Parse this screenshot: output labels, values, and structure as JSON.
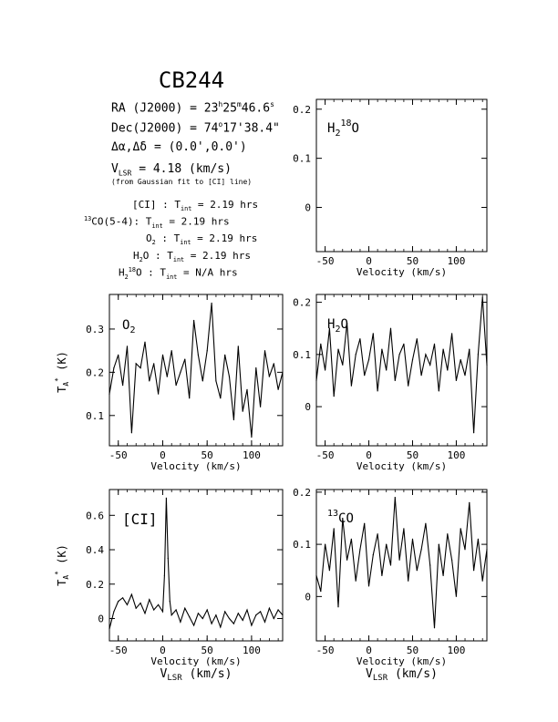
{
  "title": "CB244",
  "source_info": {
    "ra_label": "RA (J2000) =",
    "ra_value": {
      "h": "23",
      "m": "25",
      "s": "46.6"
    },
    "dec_label": "Dec(J2000) =",
    "dec_value": {
      "d": "74",
      "m": "17",
      "s": "38.4"
    },
    "offset_label": "Δα,Δδ = (0.0',0.0')",
    "vlsr_value": "4.18 (km/s)",
    "vlsr_note": "(from Gaussian fit to [CI] line)",
    "integrations": [
      {
        "line": "[CI]",
        "tint": "2.19 hrs"
      },
      {
        "line": "13CO(5-4)",
        "tint": "2.19 hrs"
      },
      {
        "line": "O2",
        "tint": "2.19 hrs"
      },
      {
        "line": "H2O",
        "tint": "2.19 hrs"
      },
      {
        "line": "H2 18O",
        "tint": "N/A hrs"
      }
    ]
  },
  "axis_text": {
    "velocity": "Velocity (km/s)",
    "vlsr": "VLSR (km/s)",
    "ta": "TA* (K)"
  },
  "chart_data": [
    {
      "id": "h218o",
      "type": "line",
      "label": "H2 18O",
      "xlim": [
        -60,
        135
      ],
      "ylim": [
        -0.09,
        0.22
      ],
      "xticks": [
        -50,
        0,
        50,
        100
      ],
      "yticks": [
        0,
        0.1,
        0.2
      ],
      "ytick_labels": [
        "0",
        "0.1",
        "0.2"
      ],
      "xlabel": "Velocity (km/s)",
      "series": []
    },
    {
      "id": "o2",
      "type": "line",
      "label": "O2",
      "xlim": [
        -60,
        135
      ],
      "ylim": [
        0.03,
        0.38
      ],
      "xticks": [
        -50,
        0,
        50,
        100
      ],
      "yticks": [
        0.1,
        0.2,
        0.3
      ],
      "ytick_labels": [
        "0.1",
        "0.2",
        "0.3"
      ],
      "xlabel": "Velocity (km/s)",
      "ylabel": "TA* (K)",
      "series": [
        {
          "x": [
            -60,
            -55,
            -50,
            -45,
            -40,
            -35,
            -30,
            -25,
            -20,
            -15,
            -10,
            -5,
            0,
            5,
            10,
            15,
            20,
            25,
            30,
            35,
            40,
            45,
            50,
            55,
            60,
            65,
            70,
            75,
            80,
            85,
            90,
            95,
            100,
            105,
            110,
            115,
            120,
            125,
            130,
            135
          ],
          "y": [
            0.15,
            0.21,
            0.24,
            0.17,
            0.26,
            0.06,
            0.22,
            0.21,
            0.27,
            0.18,
            0.22,
            0.15,
            0.24,
            0.19,
            0.25,
            0.17,
            0.2,
            0.23,
            0.14,
            0.32,
            0.24,
            0.18,
            0.25,
            0.36,
            0.18,
            0.14,
            0.24,
            0.19,
            0.09,
            0.26,
            0.11,
            0.16,
            0.05,
            0.21,
            0.12,
            0.25,
            0.19,
            0.22,
            0.16,
            0.2
          ]
        }
      ]
    },
    {
      "id": "h2o",
      "type": "line",
      "label": "H2O",
      "xlim": [
        -60,
        135
      ],
      "ylim": [
        -0.075,
        0.215
      ],
      "xticks": [
        -50,
        0,
        50,
        100
      ],
      "yticks": [
        0,
        0.1,
        0.2
      ],
      "ytick_labels": [
        "0",
        "0.1",
        "0.2"
      ],
      "xlabel": "Velocity (km/s)",
      "series": [
        {
          "x": [
            -60,
            -55,
            -50,
            -45,
            -40,
            -35,
            -30,
            -25,
            -20,
            -15,
            -10,
            -5,
            0,
            5,
            10,
            15,
            20,
            25,
            30,
            35,
            40,
            45,
            50,
            55,
            60,
            65,
            70,
            75,
            80,
            85,
            90,
            95,
            100,
            105,
            110,
            115,
            120,
            125,
            130,
            135
          ],
          "y": [
            0.05,
            0.12,
            0.07,
            0.15,
            0.02,
            0.11,
            0.08,
            0.16,
            0.04,
            0.1,
            0.13,
            0.06,
            0.09,
            0.14,
            0.03,
            0.11,
            0.07,
            0.15,
            0.05,
            0.1,
            0.12,
            0.04,
            0.09,
            0.13,
            0.06,
            0.1,
            0.08,
            0.12,
            0.03,
            0.11,
            0.07,
            0.14,
            0.05,
            0.09,
            0.06,
            0.11,
            -0.05,
            0.1,
            0.21,
            0.08
          ]
        }
      ]
    },
    {
      "id": "ci",
      "type": "line",
      "label": "[CI]",
      "xlim": [
        -60,
        135
      ],
      "ylim": [
        -0.13,
        0.75
      ],
      "xticks": [
        -50,
        0,
        50,
        100
      ],
      "yticks": [
        0,
        0.2,
        0.4,
        0.6
      ],
      "ytick_labels": [
        "0",
        "0.2",
        "0.4",
        "0.6"
      ],
      "xlabel": "Velocity (km/s)",
      "x2label": "VLSR (km/s)",
      "ylabel": "TA* (K)",
      "series": [
        {
          "x": [
            -60,
            -55,
            -50,
            -45,
            -40,
            -35,
            -30,
            -25,
            -20,
            -15,
            -10,
            -5,
            0,
            2,
            4,
            6,
            8,
            10,
            15,
            20,
            25,
            30,
            35,
            40,
            45,
            50,
            55,
            60,
            65,
            70,
            75,
            80,
            85,
            90,
            95,
            100,
            105,
            110,
            115,
            120,
            125,
            130,
            135
          ],
          "y": [
            -0.06,
            0.04,
            0.1,
            0.12,
            0.08,
            0.14,
            0.06,
            0.09,
            0.03,
            0.11,
            0.05,
            0.08,
            0.04,
            0.25,
            0.7,
            0.35,
            0.1,
            0.02,
            0.05,
            -0.02,
            0.06,
            0.01,
            -0.04,
            0.03,
            0.0,
            0.05,
            -0.03,
            0.02,
            -0.05,
            0.04,
            0.0,
            -0.03,
            0.03,
            -0.01,
            0.05,
            -0.04,
            0.02,
            0.04,
            -0.02,
            0.06,
            0.0,
            0.05,
            0.02
          ]
        }
      ]
    },
    {
      "id": "13co",
      "type": "line",
      "label": "13CO",
      "xlim": [
        -60,
        135
      ],
      "ylim": [
        -0.085,
        0.205
      ],
      "xticks": [
        -50,
        0,
        50,
        100
      ],
      "yticks": [
        0,
        0.1,
        0.2
      ],
      "ytick_labels": [
        "0",
        "0.1",
        "0.2"
      ],
      "xlabel": "Velocity (km/s)",
      "x2label": "VLSR (km/s)",
      "series": [
        {
          "x": [
            -60,
            -55,
            -50,
            -45,
            -40,
            -35,
            -30,
            -25,
            -20,
            -15,
            -10,
            -5,
            0,
            5,
            10,
            15,
            20,
            25,
            30,
            35,
            40,
            45,
            50,
            55,
            60,
            65,
            70,
            75,
            80,
            85,
            90,
            95,
            100,
            105,
            110,
            115,
            120,
            125,
            130,
            135
          ],
          "y": [
            0.04,
            0.01,
            0.1,
            0.05,
            0.13,
            -0.02,
            0.15,
            0.07,
            0.11,
            0.03,
            0.09,
            0.14,
            0.02,
            0.08,
            0.12,
            0.04,
            0.1,
            0.06,
            0.19,
            0.07,
            0.13,
            0.03,
            0.11,
            0.05,
            0.09,
            0.14,
            0.06,
            -0.06,
            0.1,
            0.04,
            0.12,
            0.07,
            0.0,
            0.13,
            0.09,
            0.18,
            0.05,
            0.11,
            0.03,
            0.09
          ]
        }
      ]
    }
  ]
}
